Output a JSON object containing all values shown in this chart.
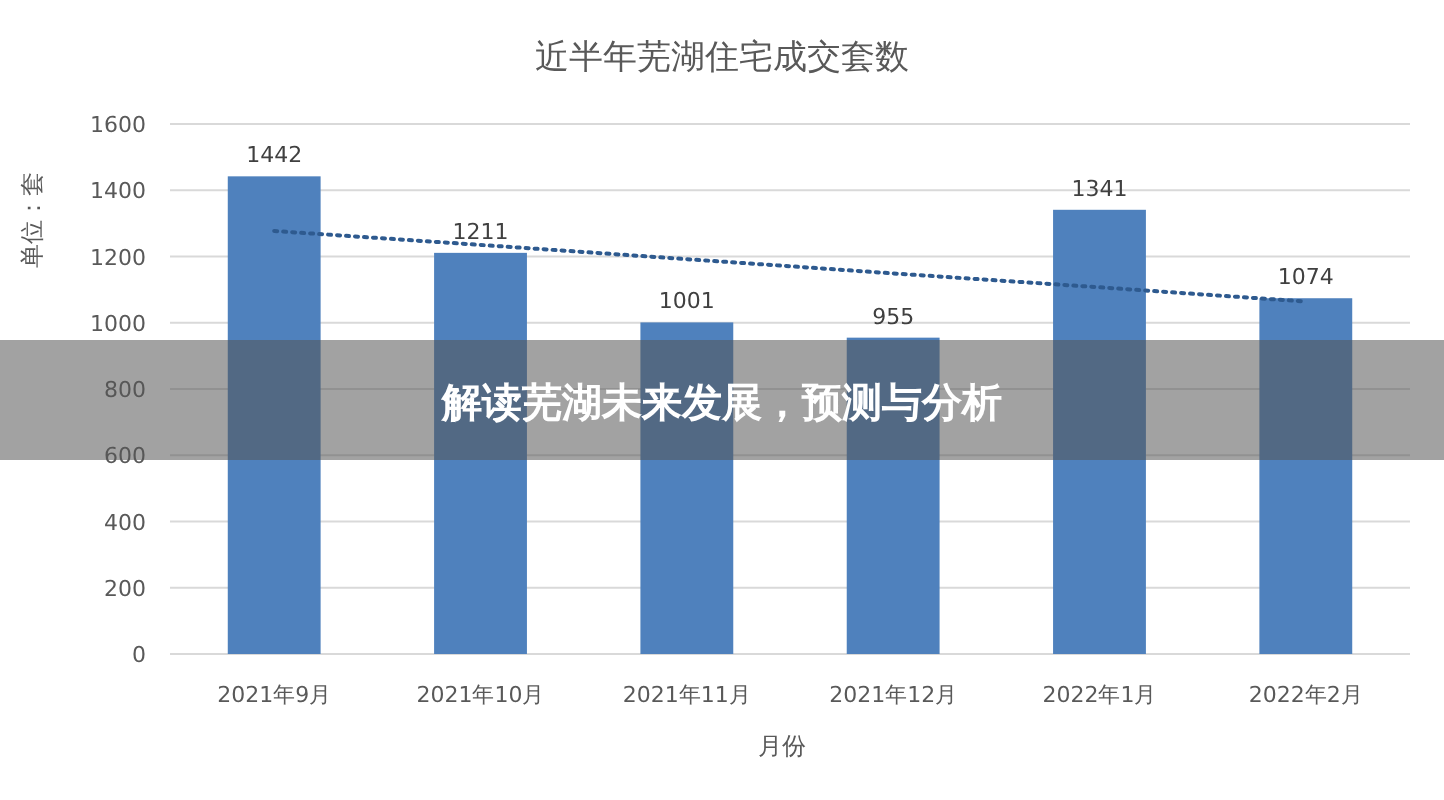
{
  "chart_data": {
    "type": "bar",
    "title": "近半年芜湖住宅成交套数",
    "xlabel": "月份",
    "ylabel": "单位：套",
    "categories": [
      "2021年9月",
      "2021年10月",
      "2021年11月",
      "2021年12月",
      "2022年1月",
      "2022年2月"
    ],
    "series": [
      {
        "color": "#4f81bd",
        "values": [
          1442,
          1211,
          1001,
          955,
          1341,
          1074
        ],
        "value_labels": [
          "1442",
          "1211",
          "1001",
          "955",
          "1341",
          "1074"
        ]
      },
      {
        "type": "line",
        "color": "#2e5a8f",
        "line_style": "dotted",
        "values": [
          1277,
          1235,
          1192,
          1149,
          1107,
          1064
        ]
      }
    ],
    "ylim": [
      0,
      1600
    ],
    "yticks": [
      0,
      200,
      400,
      600,
      800,
      1000,
      1200,
      1400,
      1600
    ],
    "grid": "y",
    "annotations": [
      "解读芜湖未来发展，预测与分析"
    ]
  }
}
